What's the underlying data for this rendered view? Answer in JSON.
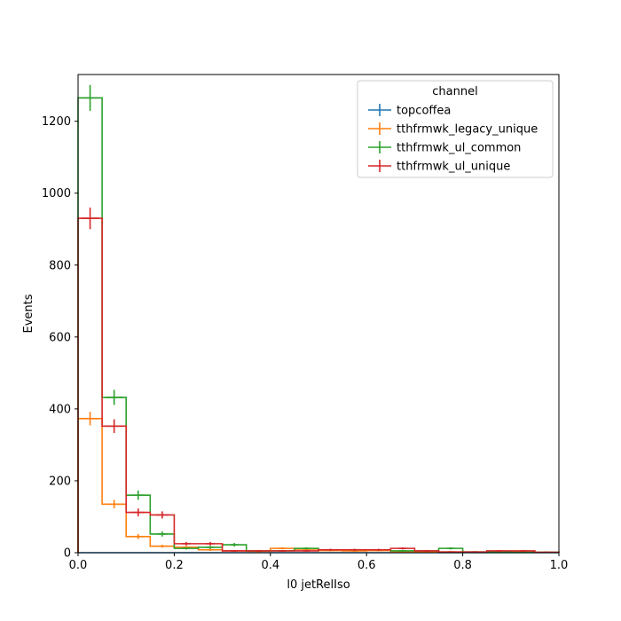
{
  "chart_data": {
    "type": "histogram-step",
    "xlabel": "l0 jetRelIso",
    "ylabel": "Events",
    "xlim": [
      0,
      1.0
    ],
    "ylim": [
      0,
      1330
    ],
    "xticks": [
      0.0,
      0.2,
      0.4,
      0.6,
      0.8,
      1.0
    ],
    "xtick_labels": [
      "0.0",
      "0.2",
      "0.4",
      "0.6",
      "0.8",
      "1.0"
    ],
    "yticks": [
      0,
      200,
      400,
      600,
      800,
      1000,
      1200
    ],
    "ytick_labels": [
      "0",
      "200",
      "400",
      "600",
      "800",
      "1000",
      "1200"
    ],
    "grid": false,
    "legend": {
      "title": "channel",
      "placement": "top-right"
    },
    "bin_edges": [
      0,
      0.05,
      0.1,
      0.15,
      0.2,
      0.25,
      0.3,
      0.35,
      0.4,
      0.45,
      0.5,
      0.55,
      0.6,
      0.65,
      0.7,
      0.75,
      0.8,
      0.85,
      0.9,
      0.95,
      1.0
    ],
    "series": [
      {
        "name": "topcoffea",
        "color": "#1f77b4",
        "values": [
          0,
          0,
          0,
          0,
          0,
          0,
          0,
          0,
          0,
          0,
          0,
          0,
          0,
          0,
          0,
          0,
          0,
          0,
          0,
          0
        ],
        "errors": [
          0,
          0,
          0,
          0,
          0,
          0,
          0,
          0,
          0,
          0,
          0,
          0,
          0,
          0,
          0,
          0,
          0,
          0,
          0,
          0
        ]
      },
      {
        "name": "tthfrmwk_legacy_unique",
        "color": "#ff7f0e",
        "values": [
          373,
          135,
          45,
          18,
          15,
          8,
          5,
          4,
          12,
          10,
          6,
          5,
          6,
          3,
          2,
          2,
          1,
          2,
          2,
          1
        ],
        "errors": [
          19,
          12,
          7,
          4,
          4,
          3,
          2,
          2,
          3,
          3,
          2,
          2,
          2,
          2,
          1,
          1,
          1,
          1,
          1,
          1
        ]
      },
      {
        "name": "tthfrmwk_ul_common",
        "color": "#2ca02c",
        "values": [
          1265,
          432,
          160,
          52,
          12,
          15,
          22,
          5,
          5,
          12,
          8,
          8,
          8,
          5,
          5,
          12,
          2,
          2,
          1,
          1
        ],
        "errors": [
          36,
          21,
          13,
          7,
          3,
          4,
          5,
          2,
          2,
          3,
          3,
          3,
          3,
          2,
          2,
          3,
          1,
          1,
          1,
          1
        ]
      },
      {
        "name": "tthfrmwk_ul_unique",
        "color": "#d62728",
        "values": [
          930,
          352,
          112,
          105,
          25,
          25,
          5,
          5,
          5,
          5,
          8,
          8,
          8,
          12,
          5,
          2,
          2,
          5,
          5,
          1
        ],
        "errors": [
          30,
          19,
          11,
          10,
          5,
          5,
          2,
          2,
          2,
          2,
          3,
          3,
          3,
          3,
          2,
          1,
          1,
          2,
          2,
          1
        ]
      }
    ]
  }
}
